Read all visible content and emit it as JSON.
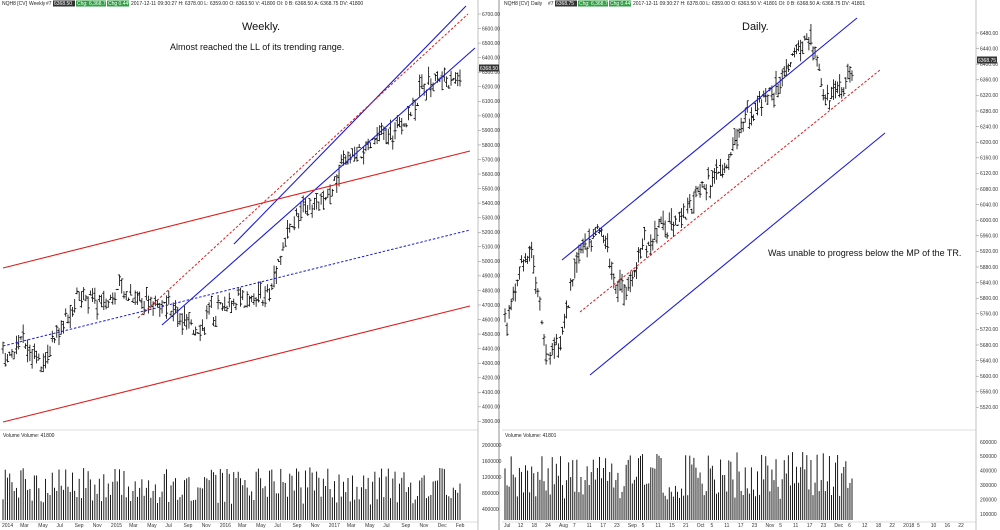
{
  "colors": {
    "bars": "#000000",
    "channel": "#1a1adb",
    "trend_red": "#e01b1b",
    "midline_red": "#e01b1b",
    "midline_blue": "#1a1adb",
    "last_price_tag": "#333333",
    "date_tag_green": "#1e8c3a",
    "date_tag_dark": "#333333"
  },
  "left": {
    "header": {
      "symbol": "NQH8 [CV]",
      "timeframe": "Weekly",
      "tag_num": "#7",
      "last_price": "6368.50",
      "tags": [
        "Chg: 6,368.7b",
        "Chg 0.44%"
      ],
      "ohlc": "2017-12-11 09:30:27 H: 6378.00 L: 6359.00 O: 6363.50 V: 41800 OI: 0 B: 6368.50 A: 6368.75 DV: 41800"
    },
    "annotations": {
      "title": "Weekly.",
      "note": "Almost reached the LL of its trending range."
    },
    "y_ticks": [
      "6700.00",
      "6600.00",
      "6500.00",
      "6400.00",
      "6300.00",
      "6200.00",
      "6100.00",
      "6000.00",
      "5900.00",
      "5800.00",
      "5700.00",
      "5600.00",
      "5500.00",
      "5400.00",
      "5300.00",
      "5200.00",
      "5100.00",
      "5000.00",
      "4900.00",
      "4800.00",
      "4700.00",
      "4600.00",
      "4500.00",
      "4400.00",
      "4300.00",
      "4200.00",
      "4100.00",
      "4000.00",
      "3900.00"
    ],
    "last_price_label": "6368.50",
    "volume_label": "Volume Volume: 41800",
    "vol_ticks": [
      "2000000",
      "1600000",
      "1200000",
      "800000",
      "400000"
    ],
    "x_ticks": [
      "2014",
      "Mar",
      "May",
      "Jul",
      "Sep",
      "Nov",
      "2015",
      "Mar",
      "May",
      "Jul",
      "Sep",
      "Nov",
      "2016",
      "Mar",
      "May",
      "Jul",
      "Sep",
      "Nov",
      "2017",
      "Mar",
      "May",
      "Jul",
      "Sep",
      "Nov",
      "Dec",
      "Feb"
    ]
  },
  "right": {
    "header": {
      "symbol": "NQH8 [CV]",
      "timeframe": "Daily",
      "tag_num": "#7",
      "last_price": "6368.75",
      "tags": [
        "Chg: 6,368.7b",
        "Chg 0.44%"
      ],
      "ohlc": "2017-12-11 09:30:27 H: 6378.00 L: 6359.00 O: 6363.50 V: 41801 OI: 0 B: 6368.50 A: 6368.75 DV: 41801"
    },
    "annotations": {
      "title": "Daily.",
      "note": "Was unable to progress below the MP of the TR."
    },
    "y_ticks": [
      "6480.00",
      "6440.00",
      "6400.00",
      "6360.00",
      "6320.00",
      "6280.00",
      "6240.00",
      "6200.00",
      "6160.00",
      "6120.00",
      "6080.00",
      "6040.00",
      "6000.00",
      "5960.00",
      "5920.00",
      "5880.00",
      "5840.00",
      "5800.00",
      "5760.00",
      "5720.00",
      "5680.00",
      "5640.00",
      "5600.00",
      "5560.00",
      "5520.00",
      "5480.00",
      "5440.00"
    ],
    "last_price_label": "6368.75",
    "volume_label": "Volume Volume: 41801",
    "vol_ticks": [
      "600000",
      "500000",
      "400000",
      "300000",
      "200000",
      "100000"
    ],
    "x_ticks": [
      "Jul",
      "12",
      "18",
      "24",
      "Aug",
      "7",
      "11",
      "17",
      "23",
      "Sep",
      "5",
      "11",
      "15",
      "21",
      "Oct",
      "5",
      "11",
      "17",
      "23",
      "Nov",
      "5",
      "11",
      "17",
      "23",
      "Dec",
      "6",
      "12",
      "18",
      "22",
      "2018",
      "5",
      "10",
      "16",
      "22"
    ]
  },
  "chart_data": [
    {
      "type": "line",
      "title": "Weekly.",
      "xlabel": "",
      "ylabel": "",
      "ylim": [
        3900,
        6750
      ],
      "grid": false,
      "series_description": "weekly OHLC bars NQH8",
      "x": [
        "2014",
        "Mar",
        "May",
        "Jul",
        "Sep",
        "Nov",
        "2015",
        "Mar",
        "May",
        "Jul",
        "Sep",
        "Nov",
        "2016",
        "Mar",
        "May",
        "Jul",
        "Sep",
        "Nov",
        "2017",
        "Mar",
        "May",
        "Jul",
        "Sep",
        "Nov",
        "Dec"
      ],
      "series": [
        {
          "values": [
            4380,
            4520,
            4360,
            4560,
            4830,
            4780,
            4860,
            4820,
            4780,
            4700,
            4590,
            4700,
            4820,
            4760,
            4860,
            5300,
            5420,
            5480,
            5780,
            5830,
            5950,
            6000,
            6280,
            6340,
            6368.5
          ]
        }
      ]
    },
    {
      "type": "line",
      "title": "Daily.",
      "xlabel": "",
      "ylabel": "",
      "ylim": [
        5440,
        6480
      ],
      "grid": false,
      "x": [
        "Jul",
        "12",
        "18",
        "24",
        "Aug",
        "7",
        "11",
        "17",
        "23",
        "Sep",
        "5",
        "11",
        "15",
        "21",
        "Oct",
        "5",
        "11",
        "17",
        "23",
        "Nov",
        "5",
        "11",
        "17",
        "23",
        "Dec",
        "6"
      ],
      "series": [
        {
          "values": [
            5700,
            5840,
            5880,
            5620,
            5660,
            5840,
            5920,
            5960,
            5800,
            5800,
            5900,
            5940,
            5960,
            5990,
            6040,
            6080,
            6120,
            6200,
            6260,
            6280,
            6320,
            6400,
            6430,
            6280,
            6300,
            6368.75
          ]
        }
      ]
    }
  ]
}
